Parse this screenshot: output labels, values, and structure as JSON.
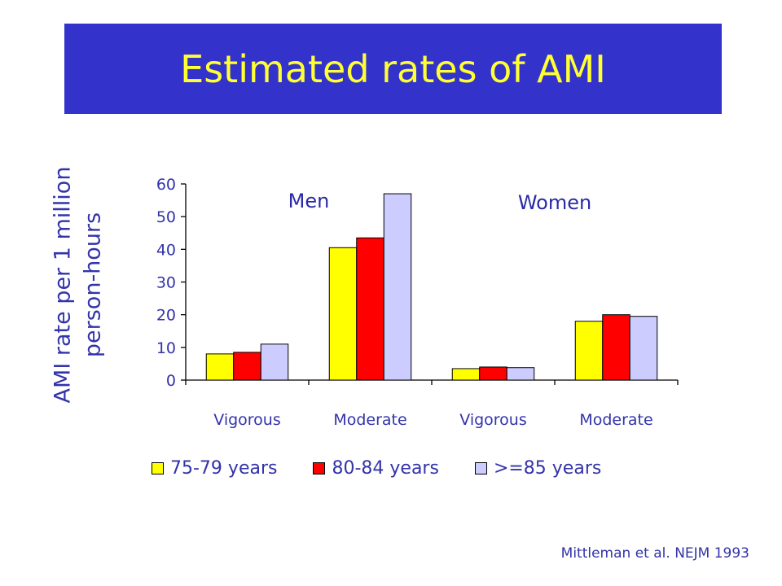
{
  "slide": {
    "title": "Estimated rates of AMI",
    "source": "Mittleman et al. NEJM 1993"
  },
  "colors": {
    "banner": "#3333cc",
    "title_text": "#ffff33",
    "text": "#3333aa"
  },
  "chart_data": {
    "type": "bar",
    "ylabel_lines": [
      "AMI rate per 1 million",
      "person-hours"
    ],
    "ylim": [
      0,
      60
    ],
    "yticks": [
      0,
      10,
      20,
      30,
      40,
      50,
      60
    ],
    "grid": false,
    "legend_position": "bottom",
    "categories": [
      "Vigorous",
      "Moderate",
      "Vigorous",
      "Moderate"
    ],
    "groups": [
      {
        "label": "Men",
        "categories": [
          0,
          1
        ]
      },
      {
        "label": "Women",
        "categories": [
          2,
          3
        ]
      }
    ],
    "series": [
      {
        "name": "75-79 years",
        "color": "#ffff00",
        "values": [
          8,
          40.5,
          3.5,
          18
        ]
      },
      {
        "name": "80-84 years",
        "color": "#ff0000",
        "values": [
          8.5,
          43.5,
          4,
          20
        ]
      },
      {
        "name": ">=85 years",
        "color": "#ccccff",
        "values": [
          11,
          57,
          3.8,
          19.5
        ]
      }
    ]
  }
}
